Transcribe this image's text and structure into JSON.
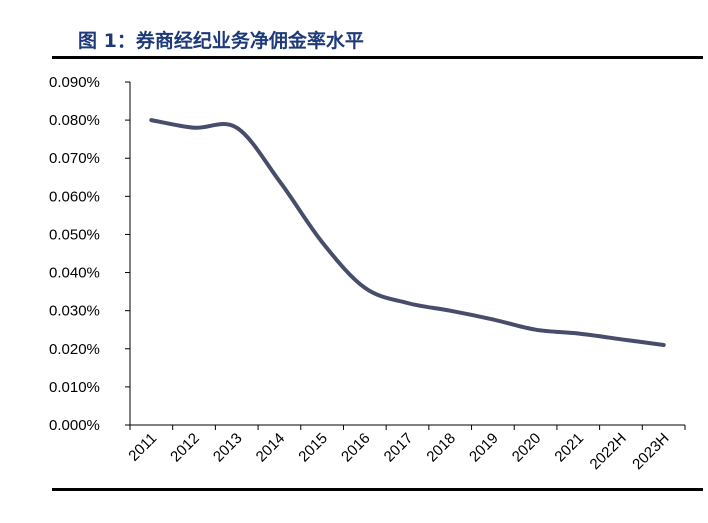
{
  "figure": {
    "title": "图 1：券商经纪业务净佣金率水平"
  },
  "chart_data": {
    "type": "line",
    "title": "",
    "xlabel": "",
    "ylabel": "",
    "categories": [
      "2011",
      "2012",
      "2013",
      "2014",
      "2015",
      "2016",
      "2017",
      "2018",
      "2019",
      "2020",
      "2021",
      "2022H",
      "2023H"
    ],
    "series": [
      {
        "values": [
          0.08,
          0.078,
          0.078,
          0.064,
          0.048,
          0.036,
          0.032,
          0.03,
          0.0277,
          0.025,
          0.024,
          0.0225,
          0.021
        ]
      }
    ],
    "ylim": [
      0,
      0.09
    ],
    "y_ticks": [
      "0.000%",
      "0.010%",
      "0.020%",
      "0.030%",
      "0.040%",
      "0.050%",
      "0.060%",
      "0.070%",
      "0.080%",
      "0.090%"
    ],
    "grid": false,
    "legend": "none",
    "colors": {
      "line": "#474d6b",
      "axis": "#000000"
    }
  }
}
